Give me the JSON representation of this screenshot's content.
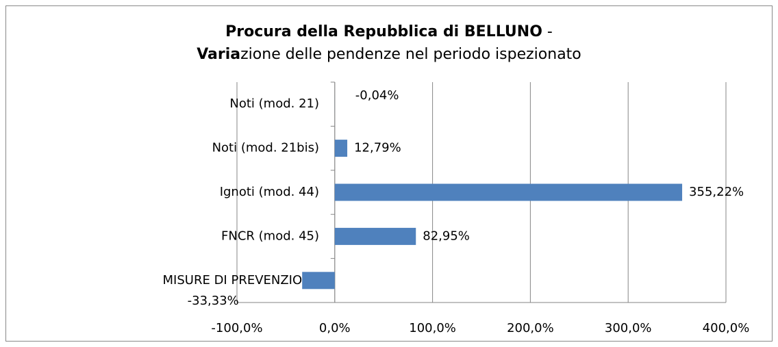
{
  "chart_data": {
    "type": "barh",
    "title": [
      [
        {
          "text": "Procura della Repubblica di BELLUNO",
          "bold": true
        },
        {
          "text": " -",
          "bold": false
        }
      ],
      [
        {
          "text": "Varia",
          "bold": true
        },
        {
          "text": "zione delle pendenze nel periodo ispezionato",
          "bold": false
        }
      ]
    ],
    "categories": [
      "Noti (mod. 21)",
      "Noti (mod. 21bis)",
      "Ignoti (mod. 44)",
      "FNCR (mod. 45)",
      "MISURE DI PREVENZIONE"
    ],
    "values": [
      -0.04,
      12.79,
      355.22,
      82.95,
      -33.33
    ],
    "value_labels": [
      "-0,04%",
      "12,79%",
      "355,22%",
      "82,95%",
      "-33,33%"
    ],
    "color": "#4f81bd",
    "xlim": [
      -100,
      400
    ],
    "xticks": [
      {
        "value": -100,
        "label": "-100,0%"
      },
      {
        "value": 0,
        "label": "0,0%"
      },
      {
        "value": 100,
        "label": "100,0%"
      },
      {
        "value": 200,
        "label": "200,0%"
      },
      {
        "value": 300,
        "label": "300,0%"
      },
      {
        "value": 400,
        "label": "400,0%"
      }
    ],
    "grid": true
  }
}
